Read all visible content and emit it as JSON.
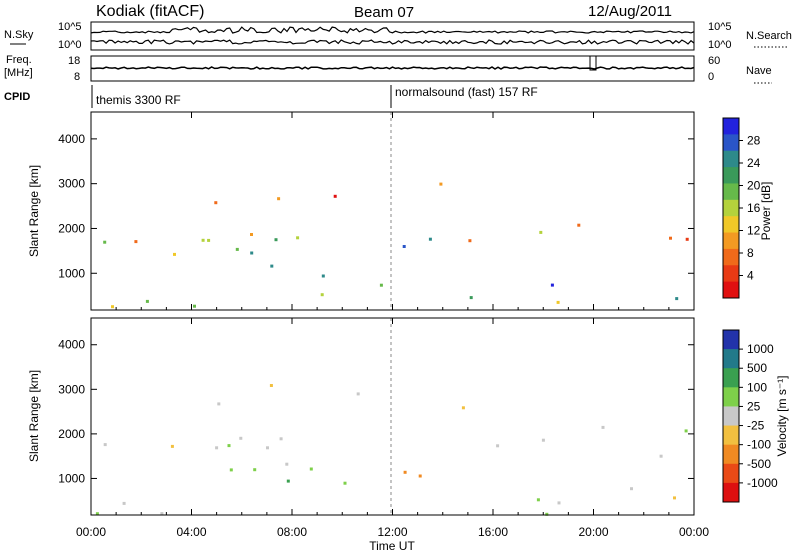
{
  "header": {
    "station": "Kodiak (fitACF)",
    "beam": "Beam 07",
    "date": "12/Aug/2011"
  },
  "strip_labels": {
    "nsky": "N.Sky",
    "nsearch": "N.Search",
    "freq": "Freq.",
    "mhz": "[MHz]",
    "nave": "Nave",
    "cpid": "CPID",
    "nsky_ticks": [
      "10^5",
      "10^0"
    ],
    "nsearch_ticks": [
      "10^5",
      "10^0"
    ],
    "freq_ticks": [
      "18",
      "8"
    ],
    "nave_ticks": [
      "60",
      "0"
    ]
  },
  "cpid_segments": [
    {
      "label": "themis 3300 RF",
      "start": "00:00",
      "end": "12:00"
    },
    {
      "label": "normalsound (fast) 157 RF",
      "start": "12:00",
      "end": "24:00"
    }
  ],
  "chart_data": [
    {
      "type": "heatmap",
      "quantity": "Power",
      "ylabel": "Slant Range [km]",
      "ylim": [
        180,
        4600
      ],
      "yticks": [
        "1000",
        "2000",
        "3000",
        "4000"
      ],
      "xlabel": "Time UT",
      "xlim": [
        "00:00",
        "24:00"
      ],
      "colorbar": {
        "label": "Power [dB]",
        "ticks": [
          "28",
          "24",
          "20",
          "16",
          "12",
          "8",
          "4"
        ],
        "colors": [
          "#2222dd",
          "#2a55c8",
          "#2e8a8a",
          "#3a9a5a",
          "#66b94a",
          "#b4d23c",
          "#f0c828",
          "#f39a22",
          "#f06a1a",
          "#e83a14",
          "#e01010"
        ]
      }
    },
    {
      "type": "heatmap",
      "quantity": "Velocity",
      "ylabel": "Slant Range [km]",
      "ylim": [
        180,
        4600
      ],
      "yticks": [
        "1000",
        "2000",
        "3000",
        "4000"
      ],
      "xlabel": "Time UT",
      "xlim": [
        "00:00",
        "24:00"
      ],
      "colorbar": {
        "label": "Velocity  [m s⁻¹]",
        "ticks": [
          "1000",
          "500",
          "100",
          "25",
          "-25",
          "-100",
          "-500",
          "-1000"
        ],
        "colors": [
          "#2233aa",
          "#227a8a",
          "#3aa050",
          "#7ed04a",
          "#c8c8c8",
          "#f2c040",
          "#f08a22",
          "#ea4a16",
          "#dd1010"
        ]
      }
    }
  ],
  "x_axis": {
    "ticks": [
      "00:00",
      "04:00",
      "08:00",
      "12:00",
      "16:00",
      "20:00",
      "00:00"
    ],
    "label": "Time UT"
  }
}
